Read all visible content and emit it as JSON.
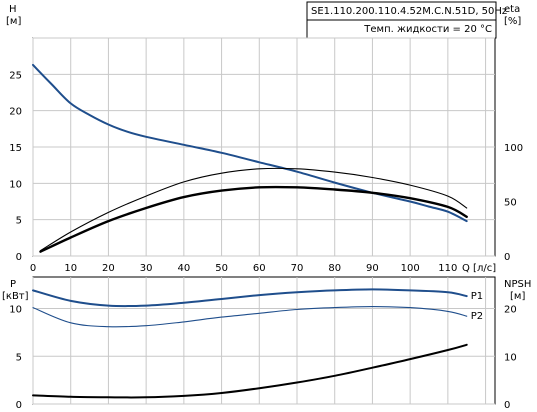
{
  "colors": {
    "head": "#1f4e8c",
    "p1": "#1f4e8c",
    "p2": "#1f4e8c",
    "eta_thin": "#000000",
    "eta_thick": "#000000",
    "npsh": "#000000"
  },
  "info": {
    "model": "SE1.110.200.110.4.52M.C.N.51D, 50Hz",
    "temp": "Темп. жидкости = 20 °C"
  },
  "chart_data": [
    {
      "type": "line",
      "xlabel": "Q [л/с]",
      "x_ticks": [
        "0",
        "10",
        "20",
        "30",
        "40",
        "50",
        "60",
        "70",
        "80",
        "90",
        "100",
        "110"
      ],
      "xlim": [
        0,
        122.5
      ],
      "ylabel_left": [
        "H",
        "[м]"
      ],
      "ylim_left": [
        0,
        30
      ],
      "yticks_left": [
        "0",
        "5",
        "10",
        "15",
        "20",
        "25"
      ],
      "ylabel_right": [
        "eta",
        "[%]"
      ],
      "ylim_right": [
        0,
        200
      ],
      "yticks_right": [
        "0",
        "50",
        "100"
      ],
      "grid": true,
      "series": [
        {
          "key": "head",
          "axis": "left",
          "x": [
            0,
            5,
            10,
            15,
            20,
            25,
            30,
            40,
            50,
            60,
            70,
            80,
            90,
            100,
            105,
            110,
            115
          ],
          "values": [
            26.3,
            23.6,
            21.0,
            19.4,
            18.1,
            17.1,
            16.4,
            15.3,
            14.2,
            12.9,
            11.6,
            10.1,
            8.7,
            7.5,
            6.8,
            6.1,
            4.8
          ]
        },
        {
          "key": "eta_thin",
          "axis": "right",
          "x": [
            2,
            10,
            20,
            30,
            40,
            50,
            60,
            70,
            80,
            90,
            100,
            110,
            115
          ],
          "values": [
            5,
            22,
            40,
            55,
            68,
            76,
            80,
            80,
            77,
            72,
            65,
            55,
            44
          ]
        },
        {
          "key": "eta_thick",
          "axis": "right",
          "x": [
            2,
            10,
            20,
            30,
            40,
            50,
            60,
            70,
            80,
            90,
            100,
            110,
            115
          ],
          "values": [
            4,
            17,
            32,
            44,
            54,
            60,
            63,
            63,
            61,
            58,
            53,
            45,
            36
          ]
        }
      ]
    },
    {
      "type": "line",
      "ylabel_left": [
        "P",
        "[кВт]"
      ],
      "ylim_left": [
        0,
        13.3
      ],
      "yticks_left": [
        "0",
        "5",
        "10"
      ],
      "ylabel_right": [
        "NPSH",
        "[м]"
      ],
      "ylim_right": [
        0,
        26.6
      ],
      "yticks_right": [
        "0",
        "10",
        "20"
      ],
      "grid": true,
      "series": [
        {
          "name": "P1",
          "key": "p1",
          "axis": "left",
          "x": [
            0,
            10,
            20,
            30,
            40,
            50,
            60,
            70,
            80,
            90,
            100,
            110,
            115
          ],
          "values": [
            11.9,
            10.8,
            10.3,
            10.3,
            10.6,
            11.0,
            11.4,
            11.7,
            11.9,
            12.0,
            11.9,
            11.7,
            11.3
          ]
        },
        {
          "name": "P2",
          "key": "p2",
          "axis": "left",
          "x": [
            0,
            10,
            20,
            30,
            40,
            50,
            60,
            70,
            80,
            90,
            100,
            110,
            115
          ],
          "values": [
            10.1,
            8.5,
            8.1,
            8.2,
            8.6,
            9.1,
            9.5,
            9.9,
            10.1,
            10.2,
            10.1,
            9.7,
            9.2
          ]
        },
        {
          "key": "npsh",
          "axis": "right",
          "x": [
            0,
            10,
            20,
            30,
            40,
            50,
            60,
            70,
            80,
            90,
            100,
            110,
            115
          ],
          "values": [
            1.8,
            1.5,
            1.4,
            1.4,
            1.7,
            2.3,
            3.3,
            4.5,
            5.9,
            7.6,
            9.4,
            11.3,
            12.4
          ]
        }
      ]
    }
  ]
}
